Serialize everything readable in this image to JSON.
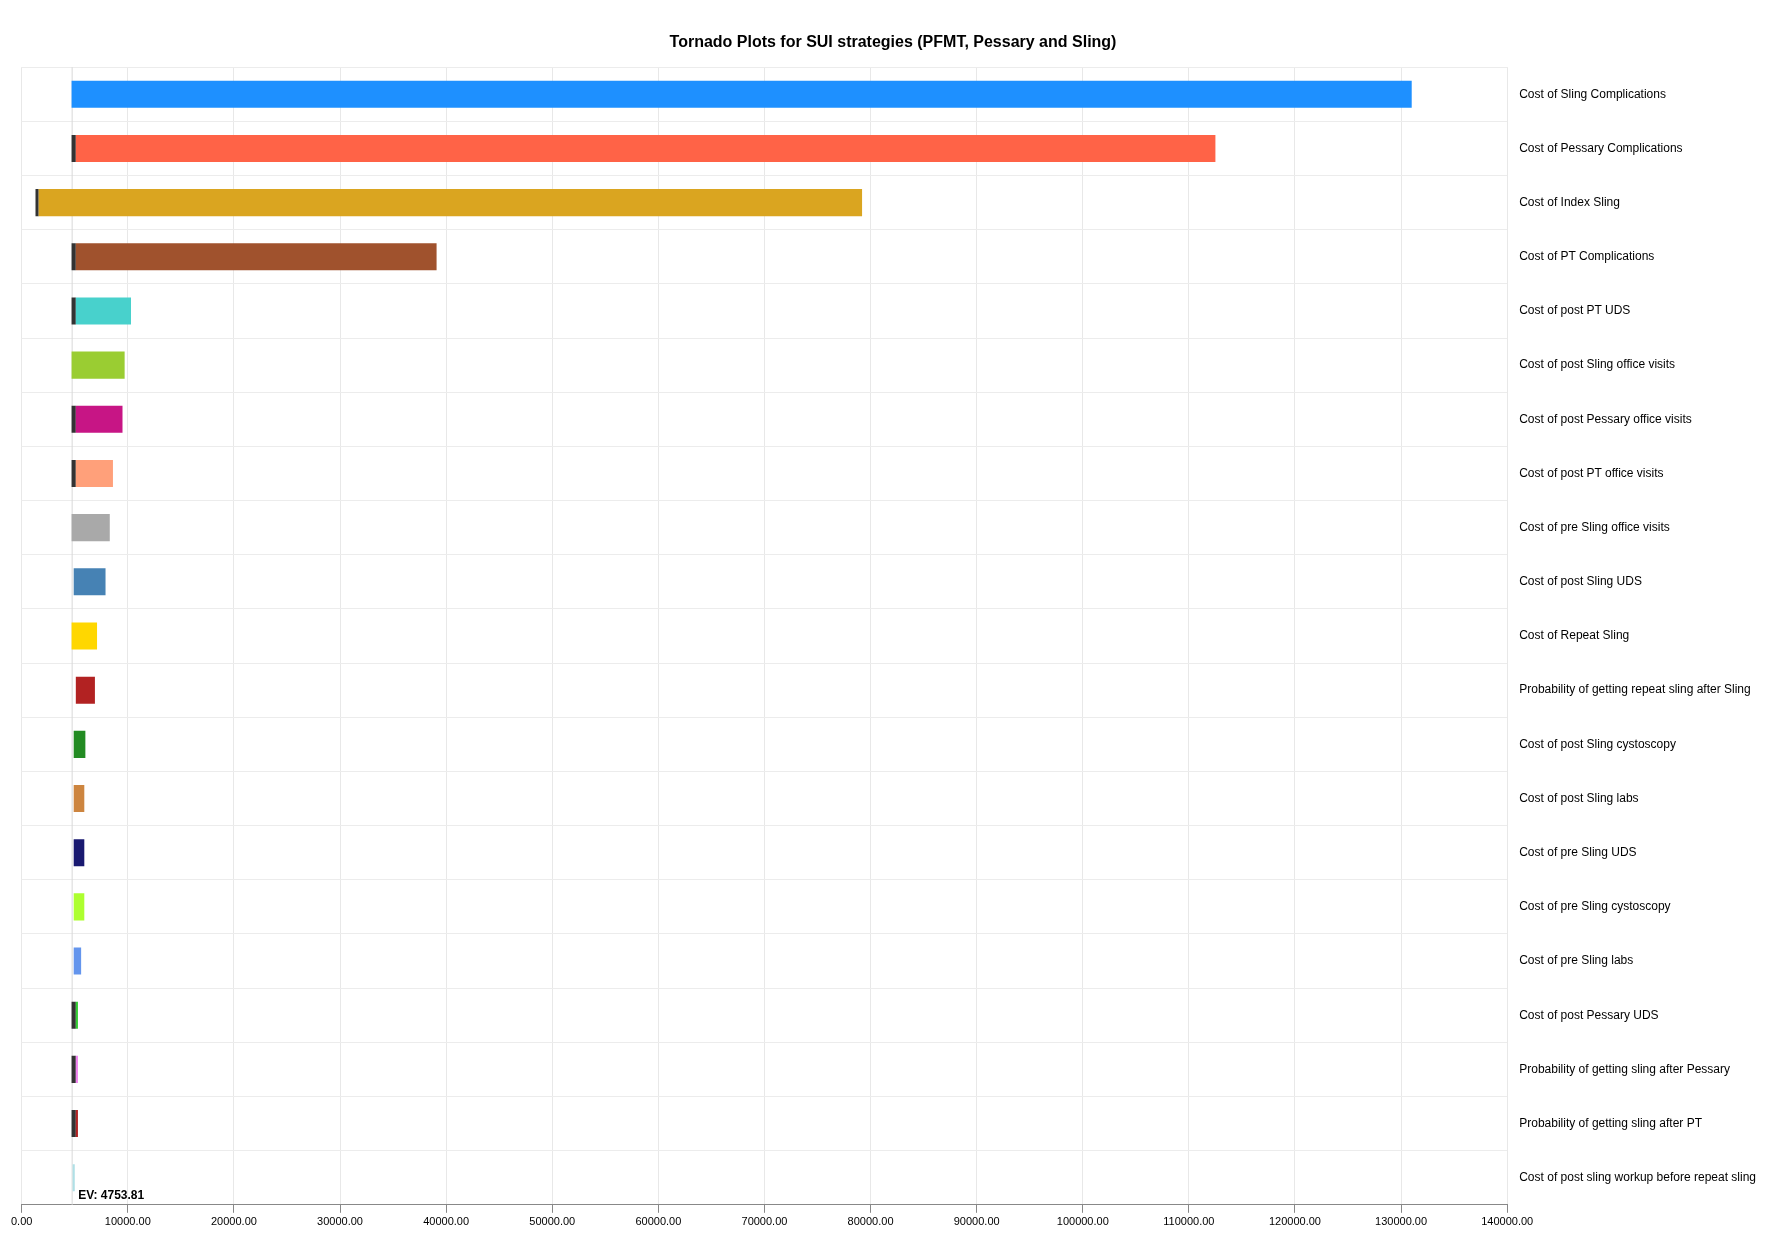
{
  "chart_data": {
    "type": "bar",
    "orientation": "horizontal",
    "title": "Tornado Plots for SUI strategies (PFMT, Pessary and Sling)",
    "categories": [
      "Cost of Sling Complications",
      "Cost of Pessary Complications",
      "Cost of Index Sling",
      "Cost of PT Complications",
      "Cost of post PT UDS",
      "Cost of post Sling office visits",
      "Cost of post Pessary office visits",
      "Cost of post PT office visits",
      "Cost of pre Sling office visits",
      "Cost of post Sling UDS",
      "Cost of Repeat Sling",
      "Probability of getting repeat sling after Sling",
      "Cost of post Sling cystoscopy",
      "Cost of post Sling labs",
      "Cost of pre Sling UDS",
      "Cost of pre Sling cystoscopy",
      "Cost of pre Sling labs",
      "Cost of post Pessary UDS",
      "Probability of getting sling after Pessary",
      "Probability of getting sling after PT",
      "Cost of post sling workup before repeat sling"
    ],
    "series": [
      {
        "base": [
          4700,
          5100,
          1600,
          5100,
          5100,
          4700,
          5100,
          5100,
          4700,
          4900,
          4700,
          5100,
          4900,
          4900,
          4900,
          4900,
          4900,
          5100,
          5100,
          5100,
          4800
        ],
        "values": [
          126300,
          107400,
          77600,
          34000,
          5200,
          5000,
          4400,
          3500,
          3600,
          3000,
          2400,
          1800,
          1100,
          1000,
          1000,
          1000,
          700,
          200,
          200,
          200,
          200
        ],
        "colors": [
          "#1e90ff",
          "#ff6347",
          "#daa520",
          "#a0522d",
          "#48d1cc",
          "#9acd32",
          "#c71585",
          "#ffa07a",
          "#a9a9a9",
          "#4682b4",
          "#ffd700",
          "#b22222",
          "#228b22",
          "#cd853f",
          "#191970",
          "#adff2f",
          "#6495ed",
          "#32cd32",
          "#ee82ee",
          "#b22222",
          "#b0e0e6"
        ]
      },
      {
        "base": [
          null,
          4700,
          1300,
          4700,
          4700,
          null,
          4700,
          4700,
          null,
          null,
          null,
          null,
          null,
          null,
          null,
          null,
          null,
          4700,
          4700,
          4700,
          null
        ],
        "values": [
          null,
          400,
          300,
          400,
          400,
          null,
          400,
          400,
          null,
          null,
          null,
          null,
          null,
          null,
          null,
          null,
          null,
          400,
          400,
          400,
          null
        ],
        "color": "#333333"
      }
    ],
    "xlim": [
      0,
      140000
    ],
    "xticks": [
      {
        "value": 0,
        "label": "0.00"
      },
      {
        "value": 10000,
        "label": "10000.00"
      },
      {
        "value": 20000,
        "label": "20000.00"
      },
      {
        "value": 30000,
        "label": "30000.00"
      },
      {
        "value": 40000,
        "label": "40000.00"
      },
      {
        "value": 50000,
        "label": "50000.00"
      },
      {
        "value": 60000,
        "label": "60000.00"
      },
      {
        "value": 70000,
        "label": "70000.00"
      },
      {
        "value": 80000,
        "label": "80000.00"
      },
      {
        "value": 90000,
        "label": "90000.00"
      },
      {
        "value": 100000,
        "label": "100000.00"
      },
      {
        "value": 110000,
        "label": "110000.00"
      },
      {
        "value": 120000,
        "label": "120000.00"
      },
      {
        "value": 130000,
        "label": "130000.00"
      },
      {
        "value": 140000,
        "label": "140000.00"
      }
    ],
    "ref_lines": [
      {
        "axis": "x",
        "value": 4753.81,
        "label": "EV: 4753.81",
        "color": "#d8d8d8"
      }
    ],
    "grid": true,
    "legend": false
  }
}
